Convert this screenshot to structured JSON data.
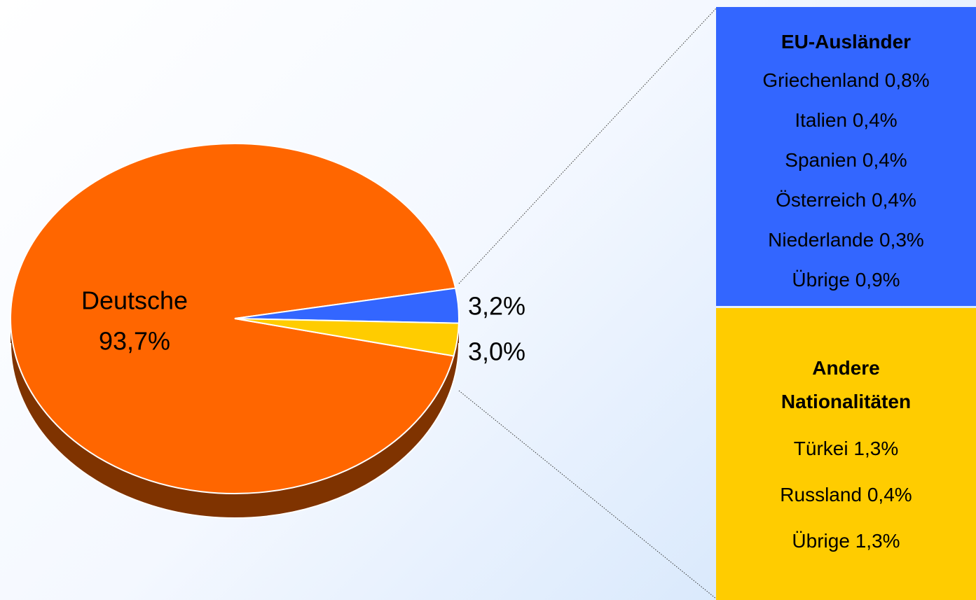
{
  "chart_data": {
    "type": "pie",
    "categories": [
      "Deutsche",
      "EU-Ausländer",
      "Andere Nationalitäten"
    ],
    "values": [
      93.7,
      3.2,
      3.0
    ],
    "value_labels": [
      "93,7%",
      "3,2%",
      "3,0%"
    ],
    "colors": [
      "#ff6600",
      "#3366ff",
      "#ffcc00"
    ],
    "breakdowns": [
      {
        "items": [
          {
            "name": "Griechenland",
            "value": 0.8,
            "value_label": "0,8%"
          },
          {
            "name": "Italien",
            "value": 0.4,
            "value_label": "0,4%"
          },
          {
            "name": "Spanien",
            "value": 0.4,
            "value_label": "0,4%"
          },
          {
            "name": "Österreich",
            "value": 0.4,
            "value_label": "0,4%"
          },
          {
            "name": "Niederlande",
            "value": 0.3,
            "value_label": "0,3%"
          },
          {
            "name": "Übrige",
            "value": 0.9,
            "value_label": "0,9%"
          }
        ]
      },
      {
        "items": [
          {
            "name": "Türkei",
            "value": 1.3,
            "value_label": "1,3%"
          },
          {
            "name": "Russland",
            "value": 0.4,
            "value_label": "0,4%"
          },
          {
            "name": "Übrige",
            "value": 1.3,
            "value_label": "1,3%"
          }
        ]
      }
    ]
  }
}
